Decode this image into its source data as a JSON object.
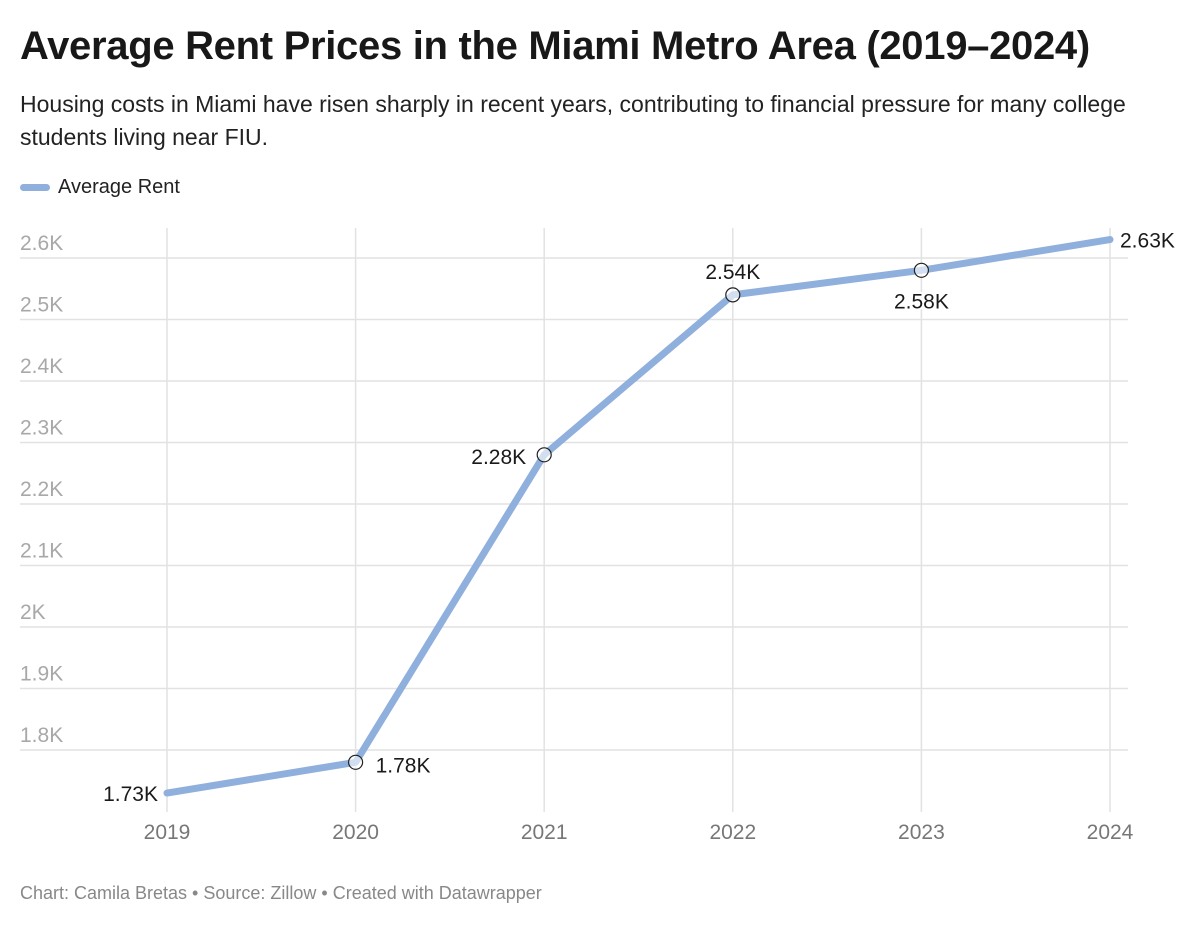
{
  "header": {
    "title": "Average Rent Prices in the Miami Metro Area (2019–2024)",
    "subtitle": "Housing costs in Miami have risen sharply in recent years, contributing to financial pressure for many college students living near FIU."
  },
  "footer": {
    "credit": "Chart: Camila Bretas • Source: Zillow • Created with Datawrapper"
  },
  "chart_data": {
    "type": "line",
    "title": "Average Rent Prices in the Miami Metro Area (2019–2024)",
    "subtitle": "Housing costs in Miami have risen sharply in recent years, contributing to financial pressure for many college students living near FIU.",
    "x": [
      "2019",
      "2020",
      "2021",
      "2022",
      "2023",
      "2024"
    ],
    "series": [
      {
        "name": "Average Rent",
        "color": "#8fafdc",
        "values": [
          1730,
          1780,
          2280,
          2540,
          2580,
          2630
        ],
        "labels": [
          "1.73K",
          "1.78K",
          "2.28K",
          "2.54K",
          "2.58K",
          "2.63K"
        ]
      }
    ],
    "y_ticks": [
      1800,
      1900,
      2000,
      2100,
      2200,
      2300,
      2400,
      2500,
      2600
    ],
    "y_tick_labels": [
      "1.8K",
      "1.9K",
      "2K",
      "2.1K",
      "2.2K",
      "2.3K",
      "2.4K",
      "2.5K",
      "2.6K"
    ],
    "ylim": [
      1700,
      2660
    ],
    "xlabel": "",
    "ylabel": "",
    "grid": true,
    "legend": "top-left"
  }
}
